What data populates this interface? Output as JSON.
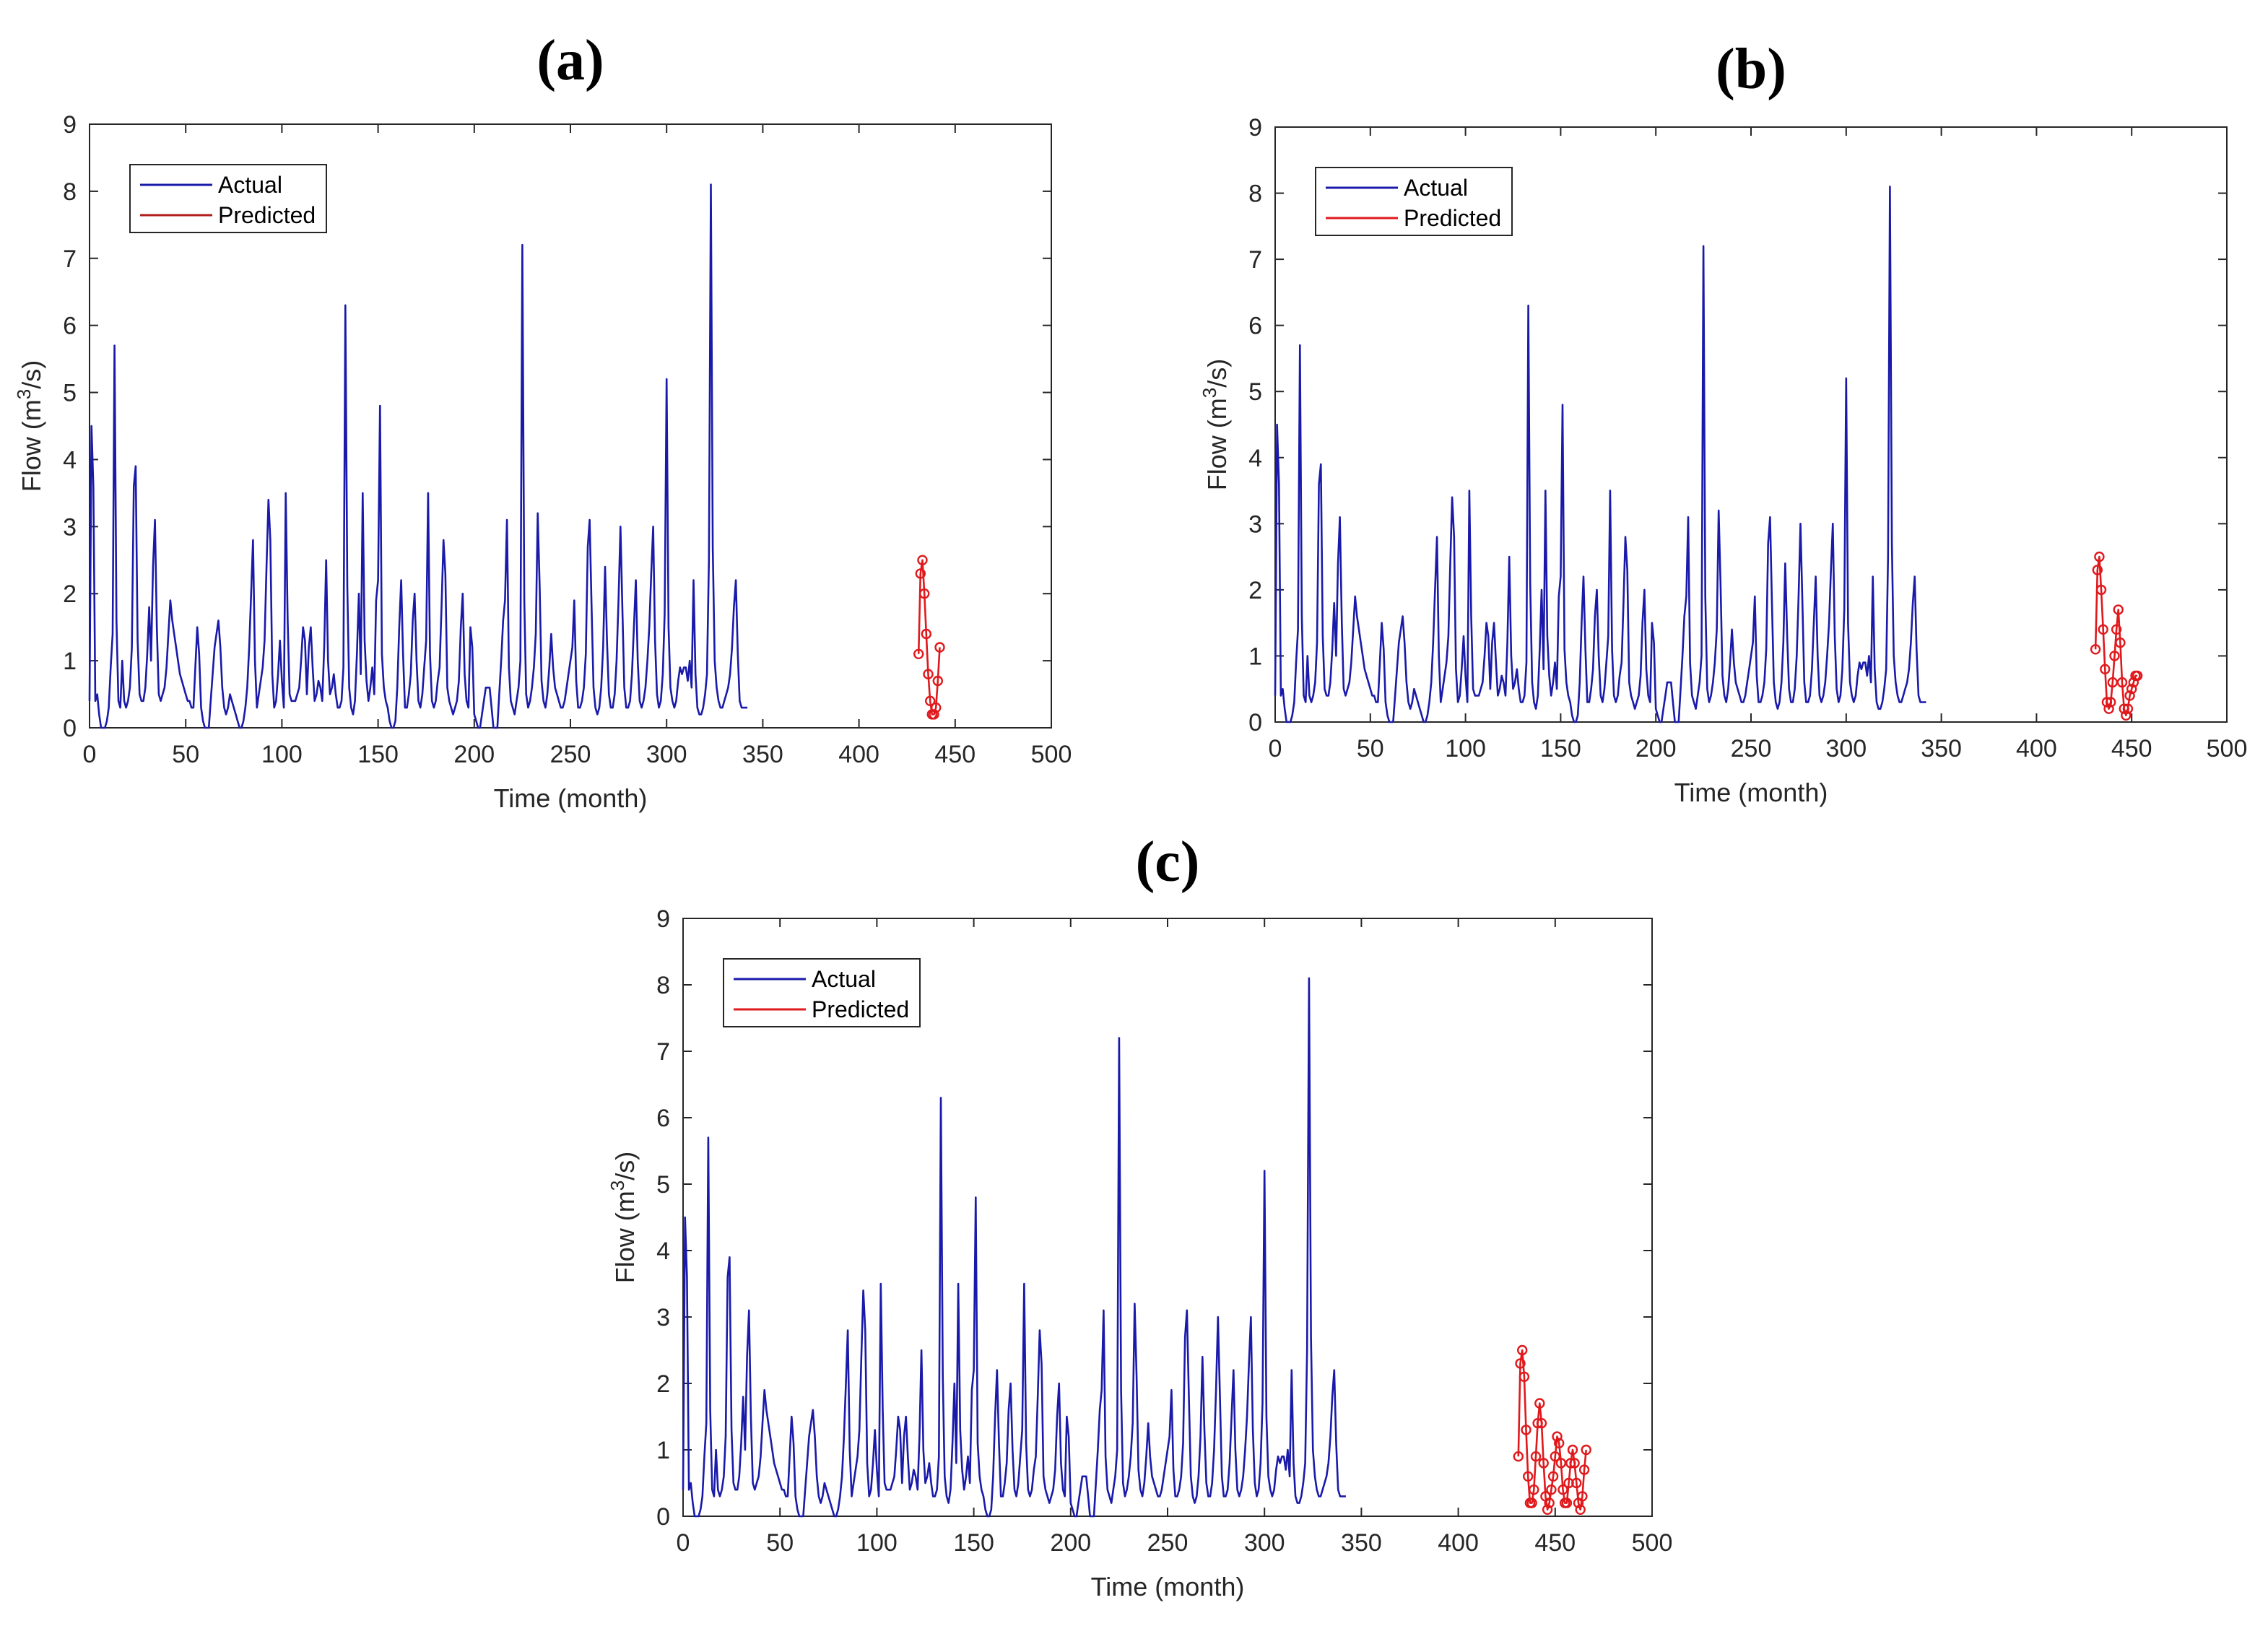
{
  "colors": {
    "actual": "#1a1aaa",
    "predicted_a": "#b01c1c",
    "predicted": "#e0191c"
  },
  "chart_data": [
    {
      "panel": "(a)",
      "type": "line",
      "title": "(a)",
      "xlabel": "Time (month)",
      "ylabel_main": "Flow (m",
      "ylabel_sup": "3",
      "ylabel_tail": "/s)",
      "xlim": [
        0,
        500
      ],
      "ylim": [
        0,
        9
      ],
      "xticks": [
        0,
        50,
        100,
        150,
        200,
        250,
        300,
        350,
        400,
        450,
        500
      ],
      "yticks": [
        0,
        1,
        2,
        3,
        4,
        5,
        6,
        7,
        8,
        9
      ],
      "legend": {
        "position": "top-left",
        "entries": [
          "Actual",
          "Predicted"
        ],
        "predicted_legend_color": "#b01c1c"
      },
      "series": [
        {
          "name": "Actual",
          "x_start": 0,
          "x_step": 1,
          "values": [
            0.4,
            4.5,
            3.6,
            0.4,
            0.5,
            0.2,
            0.0,
            0.0,
            0.0,
            0.1,
            0.3,
            0.9,
            1.4,
            5.7,
            1.6,
            0.4,
            0.3,
            1.0,
            0.4,
            0.3,
            0.4,
            0.6,
            1.2,
            3.6,
            3.9,
            1.3,
            0.5,
            0.4,
            0.4,
            0.6,
            1.1,
            1.8,
            1.0,
            2.4,
            3.1,
            1.5,
            0.5,
            0.4,
            0.5,
            0.6,
            0.9,
            1.4,
            1.9,
            1.6,
            1.4,
            1.2,
            1.0,
            0.8,
            0.7,
            0.6,
            0.5,
            0.4,
            0.4,
            0.3,
            0.3,
            0.9,
            1.5,
            1.1,
            0.3,
            0.1,
            0.0,
            0.0,
            0.0,
            0.4,
            0.8,
            1.2,
            1.4,
            1.6,
            1.2,
            0.6,
            0.3,
            0.2,
            0.3,
            0.5,
            0.4,
            0.3,
            0.2,
            0.1,
            0.0,
            0.0,
            0.1,
            0.3,
            0.6,
            1.2,
            2.0,
            2.8,
            1.0,
            0.3,
            0.5,
            0.7,
            0.9,
            1.3,
            2.4,
            3.4,
            2.8,
            0.8,
            0.3,
            0.4,
            0.8,
            1.3,
            0.7,
            0.3,
            3.5,
            1.6,
            0.5,
            0.4,
            0.4,
            0.4,
            0.5,
            0.6,
            1.0,
            1.5,
            1.3,
            0.5,
            1.2,
            1.5,
            0.9,
            0.4,
            0.5,
            0.7,
            0.6,
            0.4,
            1.2,
            2.5,
            1.0,
            0.5,
            0.6,
            0.8,
            0.5,
            0.3,
            0.3,
            0.4,
            0.9,
            6.3,
            2.1,
            0.6,
            0.3,
            0.2,
            0.4,
            1.1,
            2.0,
            0.8,
            3.5,
            1.3,
            0.7,
            0.4,
            0.6,
            0.9,
            0.5,
            1.9,
            2.2,
            4.8,
            1.1,
            0.6,
            0.4,
            0.3,
            0.1,
            0.0,
            0.0,
            0.1,
            0.6,
            1.5,
            2.2,
            1.1,
            0.3,
            0.3,
            0.5,
            0.8,
            1.6,
            2.0,
            1.0,
            0.4,
            0.3,
            0.5,
            0.9,
            1.3,
            3.5,
            1.1,
            0.4,
            0.3,
            0.4,
            0.7,
            0.9,
            1.8,
            2.8,
            2.3,
            0.6,
            0.4,
            0.3,
            0.2,
            0.3,
            0.4,
            0.7,
            1.5,
            2.0,
            0.8,
            0.4,
            0.3,
            1.5,
            1.2,
            0.2,
            0.1,
            0.0,
            0.0,
            0.2,
            0.4,
            0.6,
            0.6,
            0.6,
            0.3,
            0.0,
            0.0,
            0.0,
            0.5,
            1.0,
            1.6,
            1.9,
            3.1,
            0.9,
            0.4,
            0.3,
            0.2,
            0.4,
            0.6,
            1.0,
            7.2,
            1.9,
            0.5,
            0.3,
            0.4,
            0.6,
            0.9,
            1.4,
            3.2,
            2.1,
            0.7,
            0.4,
            0.3,
            0.5,
            0.9,
            1.4,
            0.9,
            0.6,
            0.5,
            0.4,
            0.3,
            0.3,
            0.4,
            0.6,
            0.8,
            1.0,
            1.2,
            1.9,
            0.7,
            0.3,
            0.3,
            0.4,
            0.6,
            1.1,
            2.7,
            3.1,
            1.8,
            0.6,
            0.3,
            0.2,
            0.3,
            0.6,
            1.2,
            2.4,
            1.3,
            0.5,
            0.3,
            0.3,
            0.5,
            1.0,
            1.9,
            3.0,
            1.8,
            0.6,
            0.3,
            0.3,
            0.4,
            0.8,
            1.5,
            2.2,
            1.0,
            0.4,
            0.3,
            0.4,
            0.6,
            1.0,
            1.5,
            2.3,
            3.0,
            1.3,
            0.5,
            0.3,
            0.4,
            0.8,
            1.7,
            5.2,
            1.5,
            0.6,
            0.4,
            0.3,
            0.4,
            0.7,
            0.9,
            0.8,
            0.9,
            0.9,
            0.7,
            1.0,
            0.6,
            2.2,
            0.8,
            0.3,
            0.2,
            0.2,
            0.3,
            0.5,
            0.8,
            2.5,
            8.1,
            2.7,
            1.0,
            0.6,
            0.4,
            0.3,
            0.3,
            0.4,
            0.5,
            0.6,
            0.8,
            1.2,
            1.8,
            2.2,
            1.1,
            0.4,
            0.3,
            0.3,
            0.3,
            0.3
          ]
        },
        {
          "name": "Predicted",
          "x_start": 431,
          "x_step": 1,
          "values": [
            1.1,
            2.3,
            2.5,
            2.0,
            1.4,
            0.8,
            0.4,
            0.2,
            0.2,
            0.3,
            0.7,
            1.2
          ]
        }
      ]
    },
    {
      "panel": "(b)",
      "type": "line",
      "title": "(b)",
      "xlabel": "Time (month)",
      "ylabel_main": "Flow (m",
      "ylabel_sup": "3",
      "ylabel_tail": "/s)",
      "xlim": [
        0,
        500
      ],
      "ylim": [
        0,
        9
      ],
      "xticks": [
        0,
        50,
        100,
        150,
        200,
        250,
        300,
        350,
        400,
        450,
        500
      ],
      "yticks": [
        0,
        1,
        2,
        3,
        4,
        5,
        6,
        7,
        8,
        9
      ],
      "legend": {
        "position": "top-left",
        "entries": [
          "Actual",
          "Predicted"
        ],
        "predicted_legend_color": "#e0191c"
      },
      "series": [
        {
          "name": "Actual",
          "x_start": 0,
          "x_step": 1,
          "values_ref": "a"
        },
        {
          "name": "Predicted",
          "x_start": 431,
          "x_step": 1,
          "values": [
            1.1,
            2.3,
            2.5,
            2.0,
            1.4,
            0.8,
            0.3,
            0.2,
            0.3,
            0.6,
            1.0,
            1.4,
            1.7,
            1.2,
            0.6,
            0.2,
            0.1,
            0.2,
            0.4,
            0.5,
            0.6,
            0.7,
            0.7
          ]
        }
      ]
    },
    {
      "panel": "(c)",
      "type": "line",
      "title": "(c)",
      "xlabel": "Time (month)",
      "ylabel_main": "Flow (m",
      "ylabel_sup": "3",
      "ylabel_tail": "/s)",
      "xlim": [
        0,
        500
      ],
      "ylim": [
        0,
        9
      ],
      "xticks": [
        0,
        50,
        100,
        150,
        200,
        250,
        300,
        350,
        400,
        450,
        500
      ],
      "yticks": [
        0,
        1,
        2,
        3,
        4,
        5,
        6,
        7,
        8,
        9
      ],
      "legend": {
        "position": "top-left",
        "entries": [
          "Actual",
          "Predicted"
        ],
        "predicted_legend_color": "#e0191c"
      },
      "series": [
        {
          "name": "Actual",
          "x_start": 0,
          "x_step": 1,
          "values_ref": "a"
        },
        {
          "name": "Predicted",
          "x_start": 431,
          "x_step": 1,
          "values": [
            0.9,
            2.3,
            2.5,
            2.1,
            1.3,
            0.6,
            0.2,
            0.2,
            0.4,
            0.9,
            1.4,
            1.7,
            1.4,
            0.8,
            0.3,
            0.1,
            0.2,
            0.4,
            0.6,
            0.9,
            1.2,
            1.1,
            0.8,
            0.4,
            0.2,
            0.2,
            0.5,
            0.8,
            1.0,
            0.8,
            0.5,
            0.2,
            0.1,
            0.3,
            0.7,
            1.0
          ]
        }
      ]
    }
  ]
}
